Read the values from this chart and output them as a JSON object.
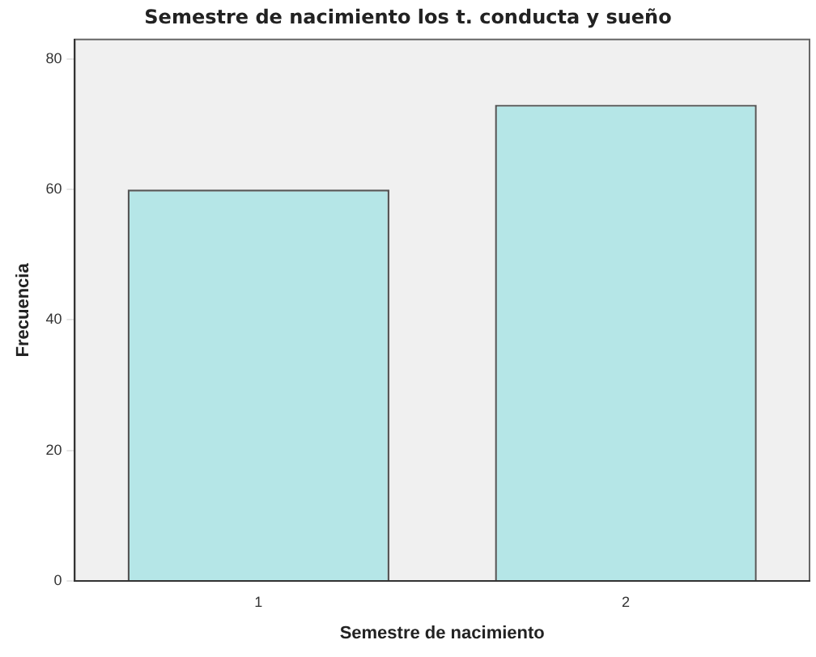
{
  "chart_data": {
    "type": "bar",
    "title": "Semestre de nacimiento los t. conducta y sueño",
    "xlabel": "Semestre de nacimiento",
    "ylabel": "Frecuencia",
    "categories": [
      "1",
      "2"
    ],
    "values": [
      60,
      73
    ],
    "color": "#b5e6e7",
    "ylim": [
      0,
      83
    ],
    "yticks": [
      0,
      20,
      40,
      60,
      80
    ],
    "grid": false,
    "legend": false
  }
}
